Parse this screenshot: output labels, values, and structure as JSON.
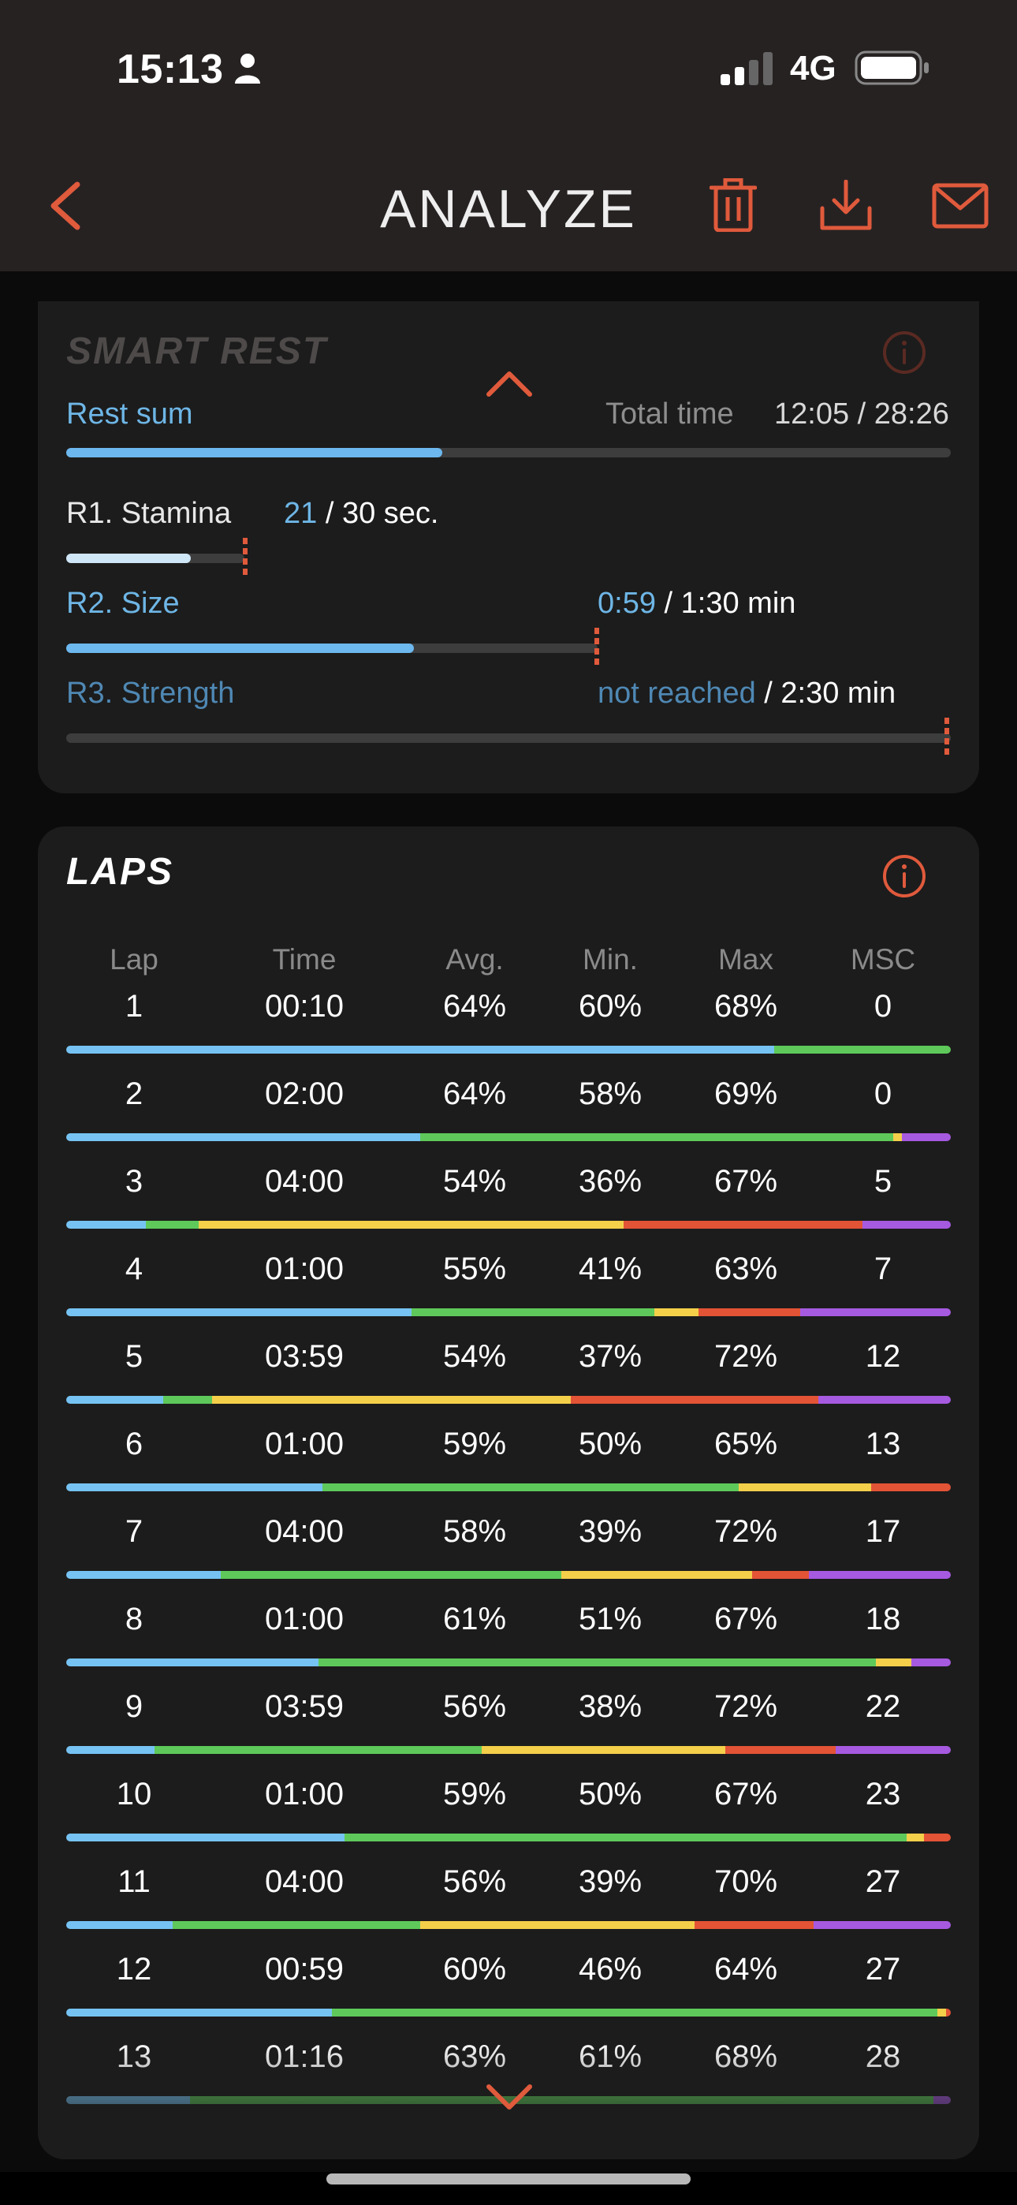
{
  "status_bar": {
    "time": "15:13",
    "network": "4G"
  },
  "header": {
    "title": "ANALYZE"
  },
  "smart_rest": {
    "title": "SMART REST",
    "rest_sum_label": "Rest sum",
    "total_time_label": "Total time",
    "total_time_value": "12:05 / 28:26",
    "rest_sum_progress": 0.425,
    "items": [
      {
        "label": "R1. Stamina",
        "value": "21",
        "suffix": "/ 30 sec.",
        "progress": 0.7
      },
      {
        "label": "R2. Size",
        "value": "0:59",
        "suffix": "/ 1:30 min",
        "progress": 0.655
      },
      {
        "label": "R3. Strength",
        "value": "not reached",
        "suffix": "/ 2:30 min",
        "progress": 0
      }
    ]
  },
  "laps": {
    "title": "LAPS",
    "columns": [
      "Lap",
      "Time",
      "Avg.",
      "Min.",
      "Max",
      "MSC"
    ],
    "rows": [
      {
        "lap": "1",
        "time": "00:10",
        "avg": "64%",
        "min": "60%",
        "max": "68%",
        "msc": "0",
        "zones": [
          0.8,
          0.2,
          0,
          0,
          0
        ]
      },
      {
        "lap": "2",
        "time": "02:00",
        "avg": "64%",
        "min": "58%",
        "max": "69%",
        "msc": "0",
        "zones": [
          0.4,
          0.535,
          0.01,
          0,
          0.055
        ]
      },
      {
        "lap": "3",
        "time": "04:00",
        "avg": "54%",
        "min": "36%",
        "max": "67%",
        "msc": "5",
        "zones": [
          0.09,
          0.06,
          0.48,
          0.27,
          0.1
        ]
      },
      {
        "lap": "4",
        "time": "01:00",
        "avg": "55%",
        "min": "41%",
        "max": "63%",
        "msc": "7",
        "zones": [
          0.39,
          0.275,
          0.05,
          0.115,
          0.17
        ]
      },
      {
        "lap": "5",
        "time": "03:59",
        "avg": "54%",
        "min": "37%",
        "max": "72%",
        "msc": "12",
        "zones": [
          0.11,
          0.055,
          0.405,
          0.28,
          0.15
        ]
      },
      {
        "lap": "6",
        "time": "01:00",
        "avg": "59%",
        "min": "50%",
        "max": "65%",
        "msc": "13",
        "zones": [
          0.29,
          0.47,
          0.15,
          0.09,
          0
        ]
      },
      {
        "lap": "7",
        "time": "04:00",
        "avg": "58%",
        "min": "39%",
        "max": "72%",
        "msc": "17",
        "zones": [
          0.175,
          0.385,
          0.215,
          0.065,
          0.16
        ]
      },
      {
        "lap": "8",
        "time": "01:00",
        "avg": "61%",
        "min": "51%",
        "max": "67%",
        "msc": "18",
        "zones": [
          0.285,
          0.63,
          0.04,
          0,
          0.045
        ]
      },
      {
        "lap": "9",
        "time": "03:59",
        "avg": "56%",
        "min": "38%",
        "max": "72%",
        "msc": "22",
        "zones": [
          0.1,
          0.37,
          0.275,
          0.125,
          0.13
        ]
      },
      {
        "lap": "10",
        "time": "01:00",
        "avg": "59%",
        "min": "50%",
        "max": "67%",
        "msc": "23",
        "zones": [
          0.315,
          0.635,
          0.02,
          0.03,
          0
        ]
      },
      {
        "lap": "11",
        "time": "04:00",
        "avg": "56%",
        "min": "39%",
        "max": "70%",
        "msc": "27",
        "zones": [
          0.12,
          0.28,
          0.31,
          0.135,
          0.155
        ]
      },
      {
        "lap": "12",
        "time": "00:59",
        "avg": "60%",
        "min": "46%",
        "max": "64%",
        "msc": "27",
        "zones": [
          0.3,
          0.685,
          0.01,
          0.005,
          0
        ]
      },
      {
        "lap": "13",
        "time": "01:16",
        "avg": "63%",
        "min": "61%",
        "max": "68%",
        "msc": "28",
        "zones": [
          0.14,
          0.84,
          0,
          0,
          0.02
        ]
      }
    ]
  },
  "colors": {
    "accent": "#e05a3c",
    "zone_blue": "#76c3f3",
    "zone_green": "#5ec95a",
    "zone_yellow": "#f4cf4a",
    "zone_red": "#e35336",
    "zone_purple": "#a65ae0"
  }
}
